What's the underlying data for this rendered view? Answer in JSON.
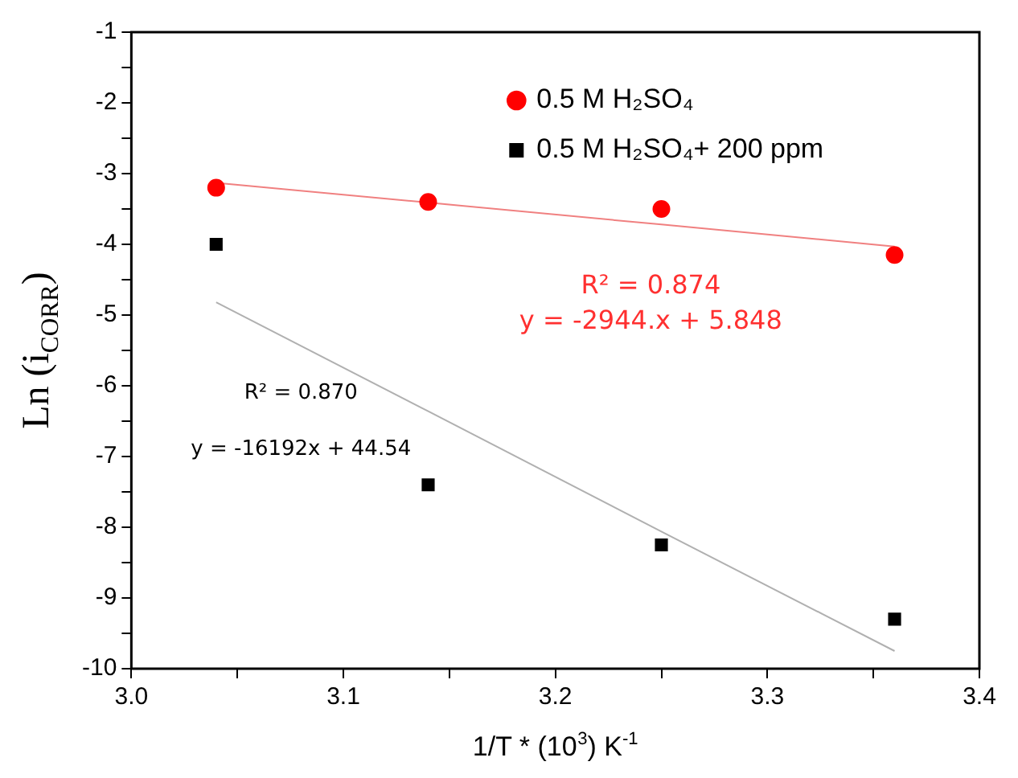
{
  "chart_data": {
    "type": "scatter",
    "xlabel": "1/T * (10$^{3}$) K$^{-1}$",
    "ylabel": "Ln (i$_{CORR}$)",
    "xlim": [
      3.0,
      3.4
    ],
    "ylim": [
      -10,
      -1
    ],
    "xticks": [
      {
        "value": 3.0,
        "label": "3.0"
      },
      {
        "value": 3.05,
        "label": null
      },
      3.1,
      {
        "value": 3.15,
        "label": null
      },
      3.2,
      {
        "value": 3.25,
        "label": null
      },
      3.3,
      {
        "value": 3.35,
        "label": null
      },
      3.4
    ],
    "yticks": [
      -10,
      {
        "value": -9.5,
        "label": null
      },
      -9,
      {
        "value": -8.5,
        "label": null
      },
      -8,
      {
        "value": -7.5,
        "label": null
      },
      -7,
      {
        "value": -6.5,
        "label": null
      },
      -6,
      {
        "value": -5.5,
        "label": null
      },
      -5,
      {
        "value": -4.5,
        "label": null
      },
      -4,
      {
        "value": -3.5,
        "label": null
      },
      -3,
      {
        "value": -2.5,
        "label": null
      },
      -2,
      {
        "value": -1.5,
        "label": null
      },
      -1
    ],
    "x": [
      3.04,
      3.14,
      3.25,
      3.36
    ],
    "series": [
      {
        "name": "0.5 M H₂SO₄",
        "color": "#ff0000",
        "marker": "circle",
        "values": [
          -3.2,
          -3.4,
          -3.5,
          -4.15
        ]
      },
      {
        "name": "0.5 M H₂SO₄+ 200 ppm",
        "color": "#000000",
        "marker": "square",
        "values": [
          -4.0,
          -7.4,
          -8.25,
          -9.3
        ]
      },
      {
        "type": "line",
        "color": "#f08080",
        "marker": "none",
        "values": [
          -3.13,
          -3.41,
          -3.72,
          -4.03
        ]
      },
      {
        "type": "line",
        "color": "#b0b0b0",
        "marker": "none",
        "values": [
          -4.82,
          -6.36,
          -8.06,
          -9.75
        ]
      }
    ],
    "annotations": [
      "R² = 0.874",
      "y = -2944.x + 5.848",
      "R² = 0.870",
      "y = -16192x + 44.54"
    ],
    "legend": "top",
    "grid": false
  }
}
